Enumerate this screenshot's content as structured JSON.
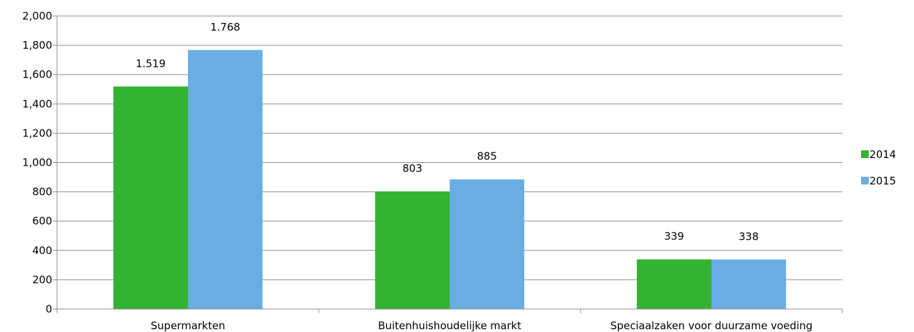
{
  "chart_data": {
    "type": "bar",
    "categories": [
      "Supermarkten",
      "Buitenhuishoudelijke markt",
      "Speciaalzaken voor duurzame voeding"
    ],
    "series": [
      {
        "name": "2014",
        "values": [
          1519,
          803,
          339
        ],
        "labels": [
          "1.519",
          "803",
          "339"
        ],
        "color": "#34b233"
      },
      {
        "name": "2015",
        "values": [
          1768,
          885,
          338
        ],
        "labels": [
          "1.768",
          "885",
          "338"
        ],
        "color": "#6aade4"
      }
    ],
    "yticks": [
      "0",
      "200",
      "400",
      "600",
      "800",
      "1,000",
      "1,200",
      "1,400",
      "1,600",
      "1,800",
      "2,000"
    ],
    "ylim": [
      0,
      2000
    ],
    "grid": true,
    "legend": "right"
  }
}
